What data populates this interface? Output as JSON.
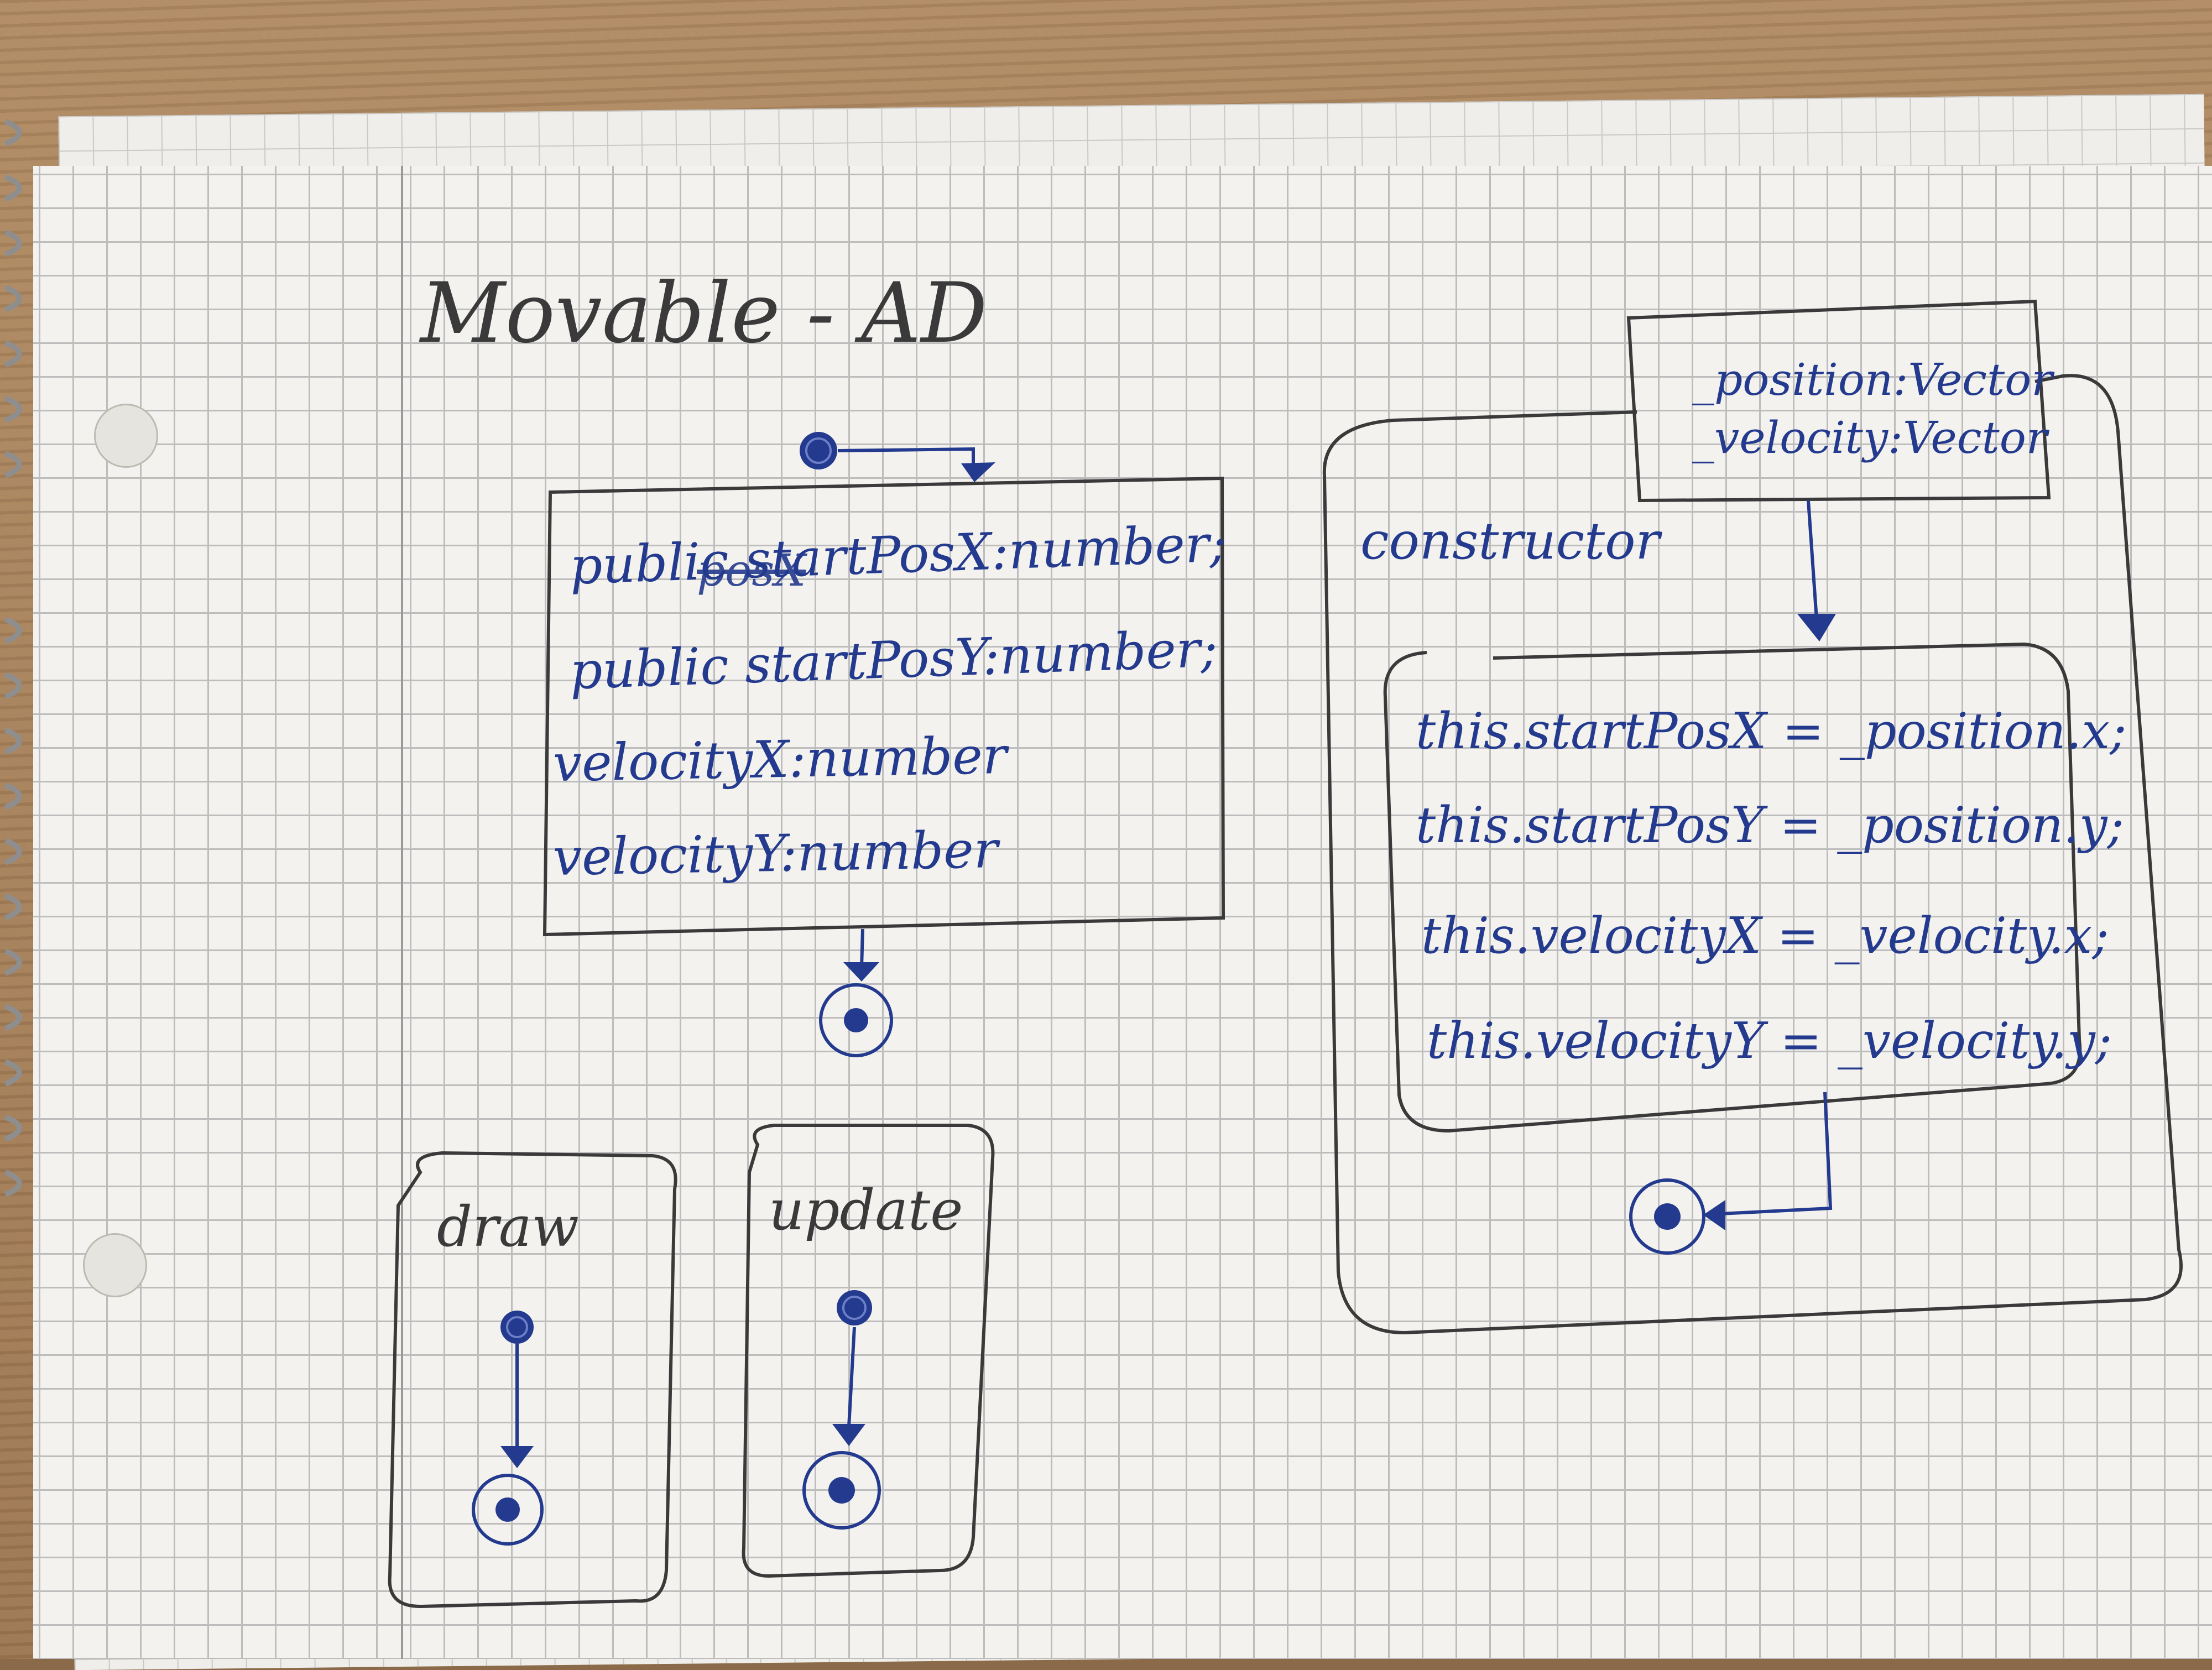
{
  "title": "Movable - AD",
  "attributes_box": {
    "lines": [
      "public startPosX:number;",
      "public startPosY:number;",
      "velocityX:number",
      "velocityY:number"
    ],
    "strikethrough_word": "posX"
  },
  "activities": {
    "draw": {
      "label": "draw"
    },
    "update": {
      "label": "update"
    },
    "constructor": {
      "label": "constructor",
      "parameters": [
        "_position:Vector",
        "_velocity:Vector"
      ],
      "statements": [
        "this.startPosX = _position.x;",
        "this.startPosY = _position.y;",
        "this.velocityX = _velocity.x;",
        "this.velocityY = _velocity.y;"
      ]
    }
  },
  "colors": {
    "ink_blue": "#233a8e",
    "pencil_gray": "#3a3a3a",
    "paper": "#f3f2ee",
    "grid": "#bdbdbd"
  }
}
